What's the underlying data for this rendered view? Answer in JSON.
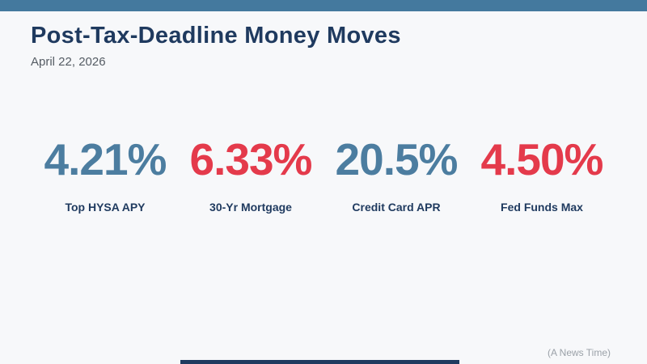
{
  "page": {
    "background_color": "#f7f8fa",
    "top_bar_color": "#44799e",
    "navy_color": "#1f3a5f",
    "date_color": "#555c64",
    "attribution_color": "#9ba1a8"
  },
  "header": {
    "title": "Post-Tax-Deadline Money Moves",
    "date": "April 22, 2026"
  },
  "stats": [
    {
      "value": "4.21%",
      "label": "Top HYSA APY",
      "color": "#4c7da0"
    },
    {
      "value": "6.33%",
      "label": "30-Yr Mortgage",
      "color": "#e43a4b"
    },
    {
      "value": "20.5%",
      "label": "Credit Card APR",
      "color": "#4c7da0"
    },
    {
      "value": "4.50%",
      "label": "Fed Funds Max",
      "color": "#e43a4b"
    }
  ],
  "footer": {
    "attribution": "(A News Time)"
  },
  "chart_data": {
    "type": "table",
    "title": "Post-Tax-Deadline Money Moves",
    "subtitle": "April 22, 2026",
    "categories": [
      "Top HYSA APY",
      "30-Yr Mortgage",
      "Credit Card APR",
      "Fed Funds Max"
    ],
    "values": [
      4.21,
      6.33,
      20.5,
      4.5
    ],
    "unit": "%",
    "value_colors": [
      "#4c7da0",
      "#e43a4b",
      "#4c7da0",
      "#e43a4b"
    ],
    "source": "(A News Time)"
  }
}
